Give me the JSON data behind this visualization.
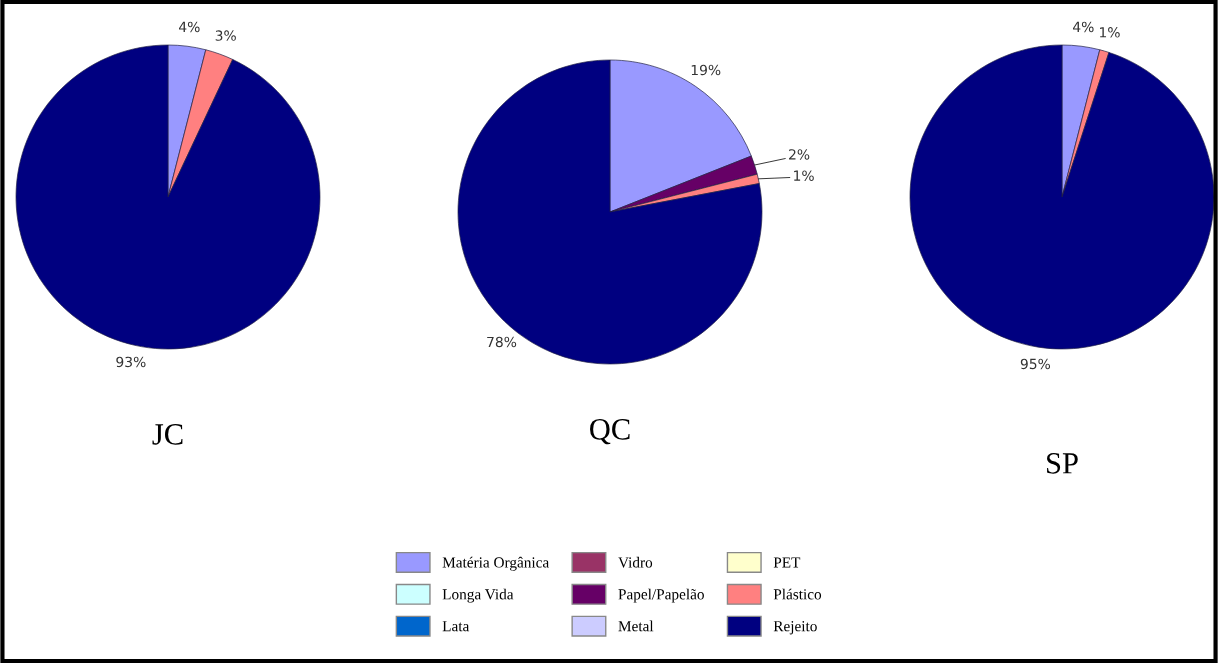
{
  "chart_data": [
    {
      "type": "pie",
      "title": "JC",
      "categories": [
        "Matéria Orgânica",
        "Vidro",
        "PET",
        "Longa Vida",
        "Papel/Papelão",
        "Plástico",
        "Lata",
        "Metal",
        "Rejeito"
      ],
      "values": [
        4,
        0,
        0,
        0,
        0,
        3,
        0,
        0,
        93
      ],
      "colors": [
        "#9999ff",
        "#993366",
        "#ffffcc",
        "#ccffff",
        "#660066",
        "#ff8080",
        "#0066cc",
        "#ccccff",
        "#000080"
      ],
      "value_labels": [
        "4%",
        null,
        null,
        null,
        null,
        "3%",
        null,
        null,
        "93%"
      ],
      "legend": "bottom"
    },
    {
      "type": "pie",
      "title": "QC",
      "categories": [
        null,
        null,
        null,
        null,
        null,
        null,
        null,
        null,
        null
      ],
      "values": [
        19,
        0,
        0,
        0,
        2,
        1,
        0,
        0,
        78
      ],
      "colors": [
        "#9999ff",
        "#993366",
        "#ffffcc",
        "#ccffff",
        "#660066",
        "#ff8080",
        "#0066cc",
        "#ccccff",
        "#000080"
      ],
      "value_labels": [
        "19%",
        null,
        null,
        null,
        "2%",
        "1%",
        null,
        null,
        "78%"
      ]
    },
    {
      "type": "pie",
      "title": "SP",
      "categories": [
        null,
        null,
        null,
        null,
        null,
        null,
        null,
        null,
        null
      ],
      "values": [
        4,
        0,
        0,
        0,
        0,
        1,
        0,
        0,
        95
      ],
      "colors": [
        "#9999ff",
        "#993366",
        "#ffffcc",
        "#ccffff",
        "#660066",
        "#ff8080",
        "#0066cc",
        "#ccccff",
        "#000080"
      ],
      "value_labels": [
        "4%",
        null,
        null,
        null,
        null,
        "1%",
        null,
        null,
        "95%"
      ]
    }
  ]
}
